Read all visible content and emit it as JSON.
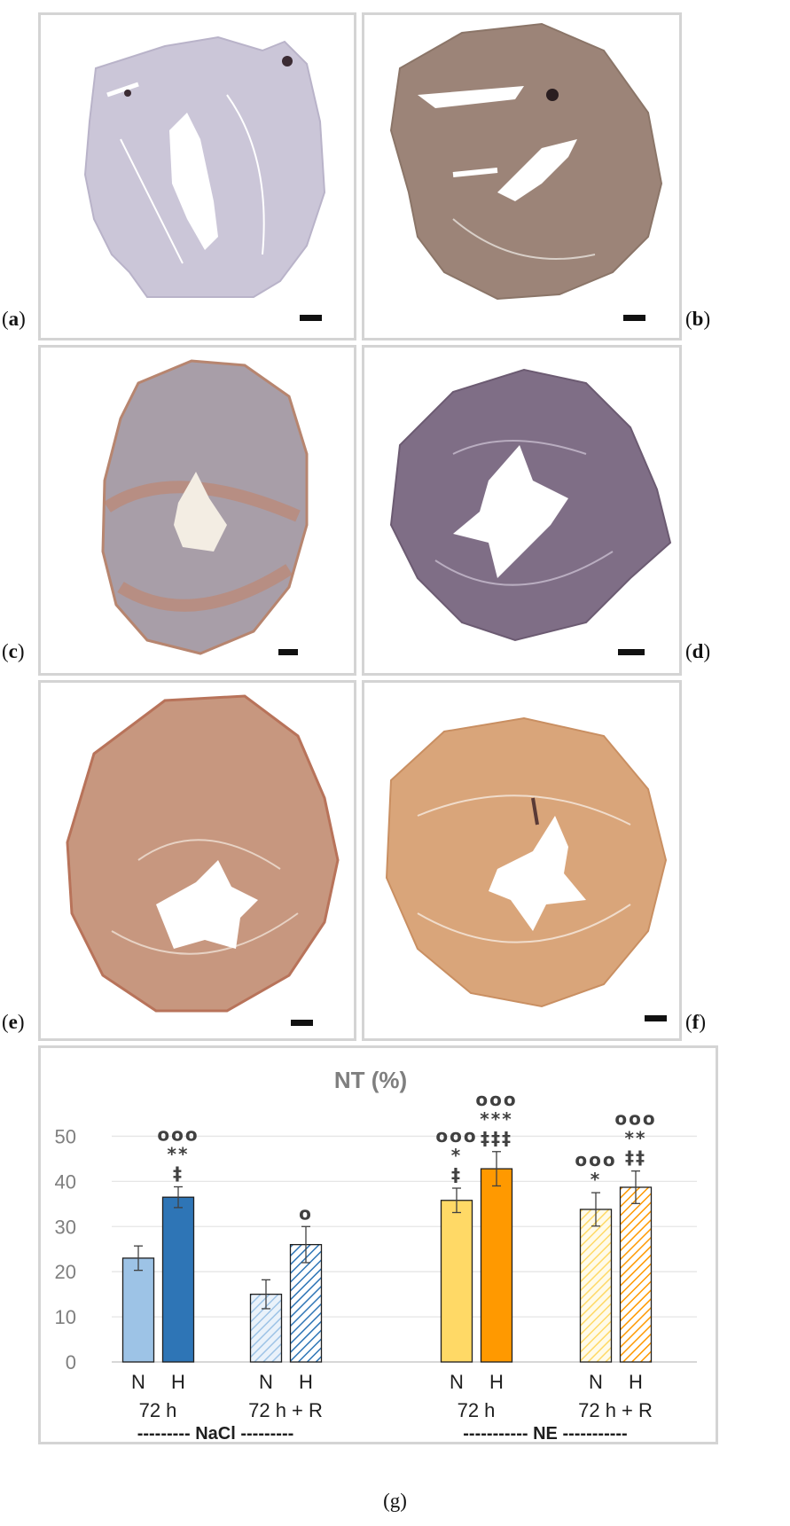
{
  "panels": [
    {
      "label_open": "(",
      "label_letter": "a",
      "label_close": ")"
    },
    {
      "label_open": "(",
      "label_letter": "b",
      "label_close": ")"
    },
    {
      "label_open": "(",
      "label_letter": "c",
      "label_close": ")"
    },
    {
      "label_open": "(",
      "label_letter": "d",
      "label_close": ")"
    },
    {
      "label_open": "(",
      "label_letter": "e",
      "label_close": ")"
    },
    {
      "label_open": "(",
      "label_letter": "f",
      "label_close": ")"
    }
  ],
  "figure_label": "(g)",
  "colors": {
    "nacl_n": "#9dc3e6",
    "nacl_h": "#2e75b6",
    "ne_n": "#ffd966",
    "ne_h": "#ff9900",
    "tissue_a": "#cbc6d8",
    "tissue_b": "#9c8478",
    "tissue_c": "#a89ea8",
    "tissue_d": "#7f6e86",
    "tissue_e": "#c7977f",
    "tissue_f": "#d9a57a"
  },
  "chart_data": {
    "type": "bar",
    "title": "NT (%)",
    "ylim": [
      0,
      55
    ],
    "yticks": [
      0,
      10,
      20,
      30,
      40,
      50
    ],
    "grid": true,
    "bars": [
      {
        "group": "NaCl",
        "time": "72 h",
        "cond": "N",
        "value": 23,
        "err": 2.7,
        "annot": []
      },
      {
        "group": "NaCl",
        "time": "72 h",
        "cond": "H",
        "value": 36.5,
        "err": 2.3,
        "annot": [
          "ooo",
          "**",
          "‡"
        ]
      },
      {
        "group": "NaCl",
        "time": "72 h + R",
        "cond": "N",
        "value": 15,
        "err": 3.2,
        "annot": []
      },
      {
        "group": "NaCl",
        "time": "72 h + R",
        "cond": "H",
        "value": 26,
        "err": 4.0,
        "annot": [
          "o"
        ]
      },
      {
        "group": "NE",
        "time": "72 h",
        "cond": "N",
        "value": 35.8,
        "err": 2.7,
        "annot": [
          "ooo",
          "*",
          "‡"
        ]
      },
      {
        "group": "NE",
        "time": "72 h",
        "cond": "H",
        "value": 42.8,
        "err": 3.8,
        "annot": [
          "ooo",
          "***",
          "‡‡‡"
        ]
      },
      {
        "group": "NE",
        "time": "72 h + R",
        "cond": "N",
        "value": 33.8,
        "err": 3.7,
        "annot": [
          "ooo",
          "*"
        ]
      },
      {
        "group": "NE",
        "time": "72 h + R",
        "cond": "H",
        "value": 38.7,
        "err": 3.6,
        "annot": [
          "ooo",
          "**",
          "‡‡"
        ]
      }
    ],
    "time_labels": [
      "72 h",
      "72 h + R",
      "72 h",
      "72 h + R"
    ],
    "group_labels": [
      {
        "dashes_left": "---------",
        "name": "NaCl",
        "dashes_right": "---------"
      },
      {
        "dashes_left": "-----------",
        "name": "NE",
        "dashes_right": "-----------"
      }
    ]
  }
}
